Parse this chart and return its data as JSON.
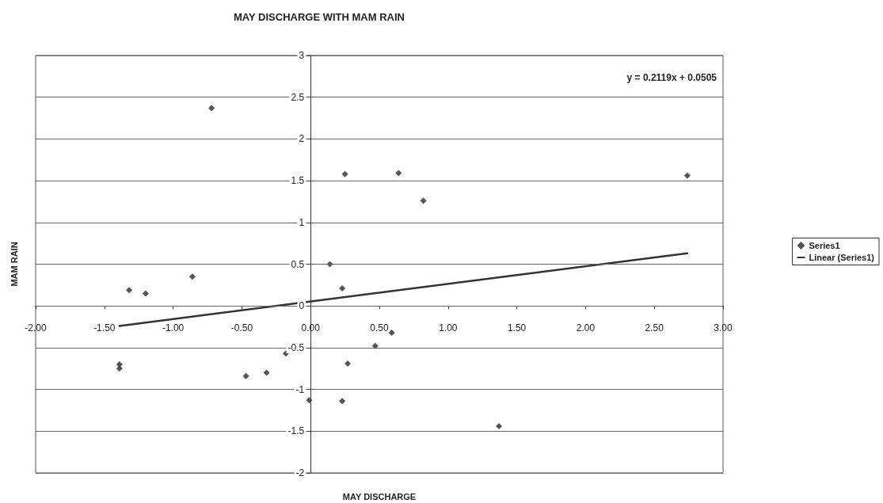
{
  "chart_data": {
    "type": "scatter",
    "title": "MAY DISCHARGE WITH MAM RAIN",
    "xlabel": "MAY DISCHARGE",
    "ylabel": "MAM RAIN",
    "annotations": [
      "y = 0.2119x + 0.0505"
    ],
    "series": [
      {
        "name": "Series1",
        "type": "scatter",
        "color": "#2b2b2b",
        "marker": "diamond",
        "x": [
          -0.72,
          -1.32,
          -1.2,
          -0.86,
          -1.39,
          -1.39,
          -0.47,
          -0.32,
          -0.18,
          -0.01,
          0.14,
          0.23,
          0.25,
          0.23,
          0.27,
          0.47,
          0.59,
          0.64,
          0.82,
          2.74,
          1.37
        ],
        "values": [
          2.37,
          0.19,
          0.15,
          0.35,
          -0.7,
          -0.75,
          -0.84,
          -0.8,
          -0.57,
          -1.13,
          0.5,
          0.21,
          1.58,
          -1.14,
          -0.69,
          -0.48,
          -0.32,
          1.59,
          1.26,
          1.56,
          -1.44
        ]
      },
      {
        "name": "Linear (Series1)",
        "type": "line",
        "color": "#333333",
        "marker": "none",
        "line_style": "solid",
        "x": [
          -1.39,
          2.74
        ],
        "values": [
          -0.24,
          0.63
        ]
      }
    ],
    "xlim": [
      -2,
      3
    ],
    "xticks": [
      {
        "value": -2,
        "label": "-2.00"
      },
      {
        "value": -1.5,
        "label": "-1.50"
      },
      {
        "value": -1,
        "label": "-1.00"
      },
      {
        "value": -0.5,
        "label": "-0.50"
      },
      {
        "value": 0,
        "label": "0.00"
      },
      {
        "value": 0.5,
        "label": "0.50"
      },
      {
        "value": 1,
        "label": "1.00"
      },
      {
        "value": 1.5,
        "label": "1.50"
      },
      {
        "value": 2,
        "label": "2.00"
      },
      {
        "value": 2.5,
        "label": "2.50"
      },
      {
        "value": 3,
        "label": "3.00"
      }
    ],
    "ylim": [
      -2,
      3
    ],
    "yticks": [
      -2,
      -1.5,
      -1,
      -0.5,
      0,
      0.5,
      1,
      1.5,
      2,
      2.5,
      3
    ],
    "grid": "y",
    "legend": "right"
  }
}
